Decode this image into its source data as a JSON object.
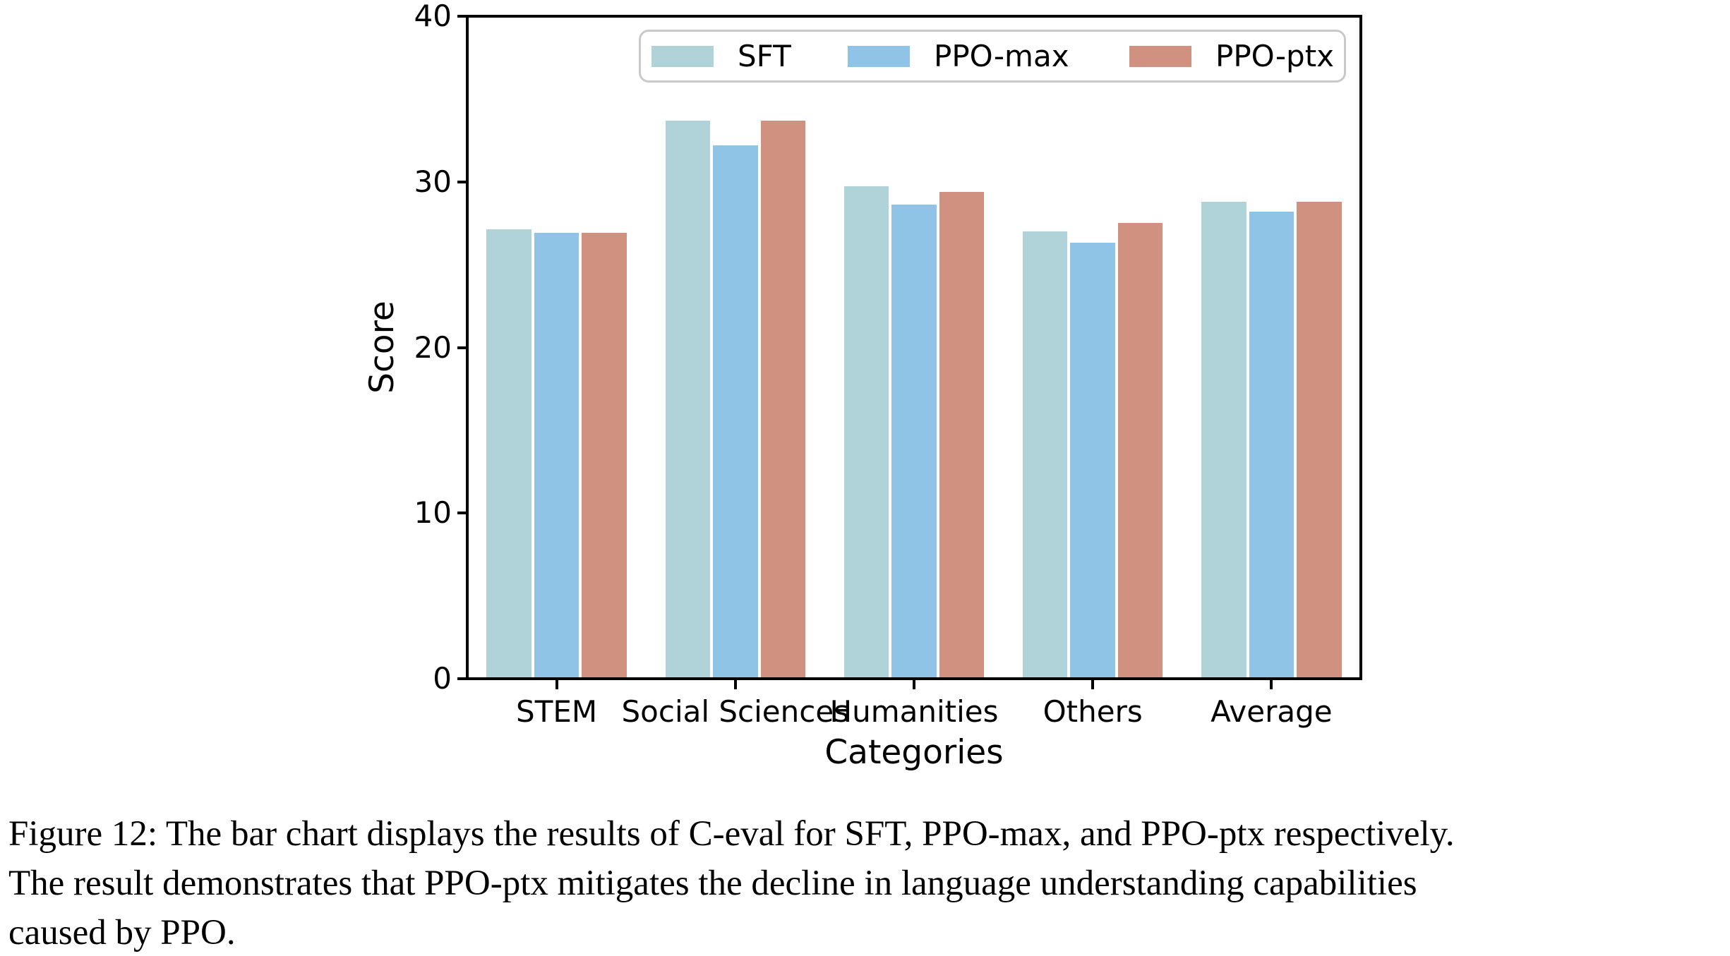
{
  "chart_data": {
    "type": "bar",
    "title": "",
    "xlabel": "Categories",
    "ylabel": "Score",
    "categories": [
      "STEM",
      "Social Sciences",
      "Humanities",
      "Others",
      "Average"
    ],
    "series": [
      {
        "name": "SFT",
        "color": "#b0d3d9",
        "values": [
          27.2,
          33.8,
          29.8,
          27.1,
          28.9
        ]
      },
      {
        "name": "PPO-max",
        "color": "#90c4e6",
        "values": [
          27.0,
          32.3,
          28.7,
          26.4,
          28.3
        ]
      },
      {
        "name": "PPO-ptx",
        "color": "#d19180",
        "values": [
          27.0,
          33.8,
          29.5,
          27.6,
          28.9
        ]
      }
    ],
    "ylim": [
      0,
      40
    ],
    "yticks": [
      0,
      10,
      20,
      30,
      40
    ],
    "grid": false,
    "legend_position": "upper center",
    "bar_edge_color": "#ffffff"
  },
  "caption": {
    "lines": [
      "Figure 12: The bar chart displays the results of C-eval for SFT, PPO-max, and PPO-ptx respectively.",
      "The result demonstrates that PPO-ptx mitigates the decline in language understanding capabilities",
      "caused by PPO."
    ]
  }
}
